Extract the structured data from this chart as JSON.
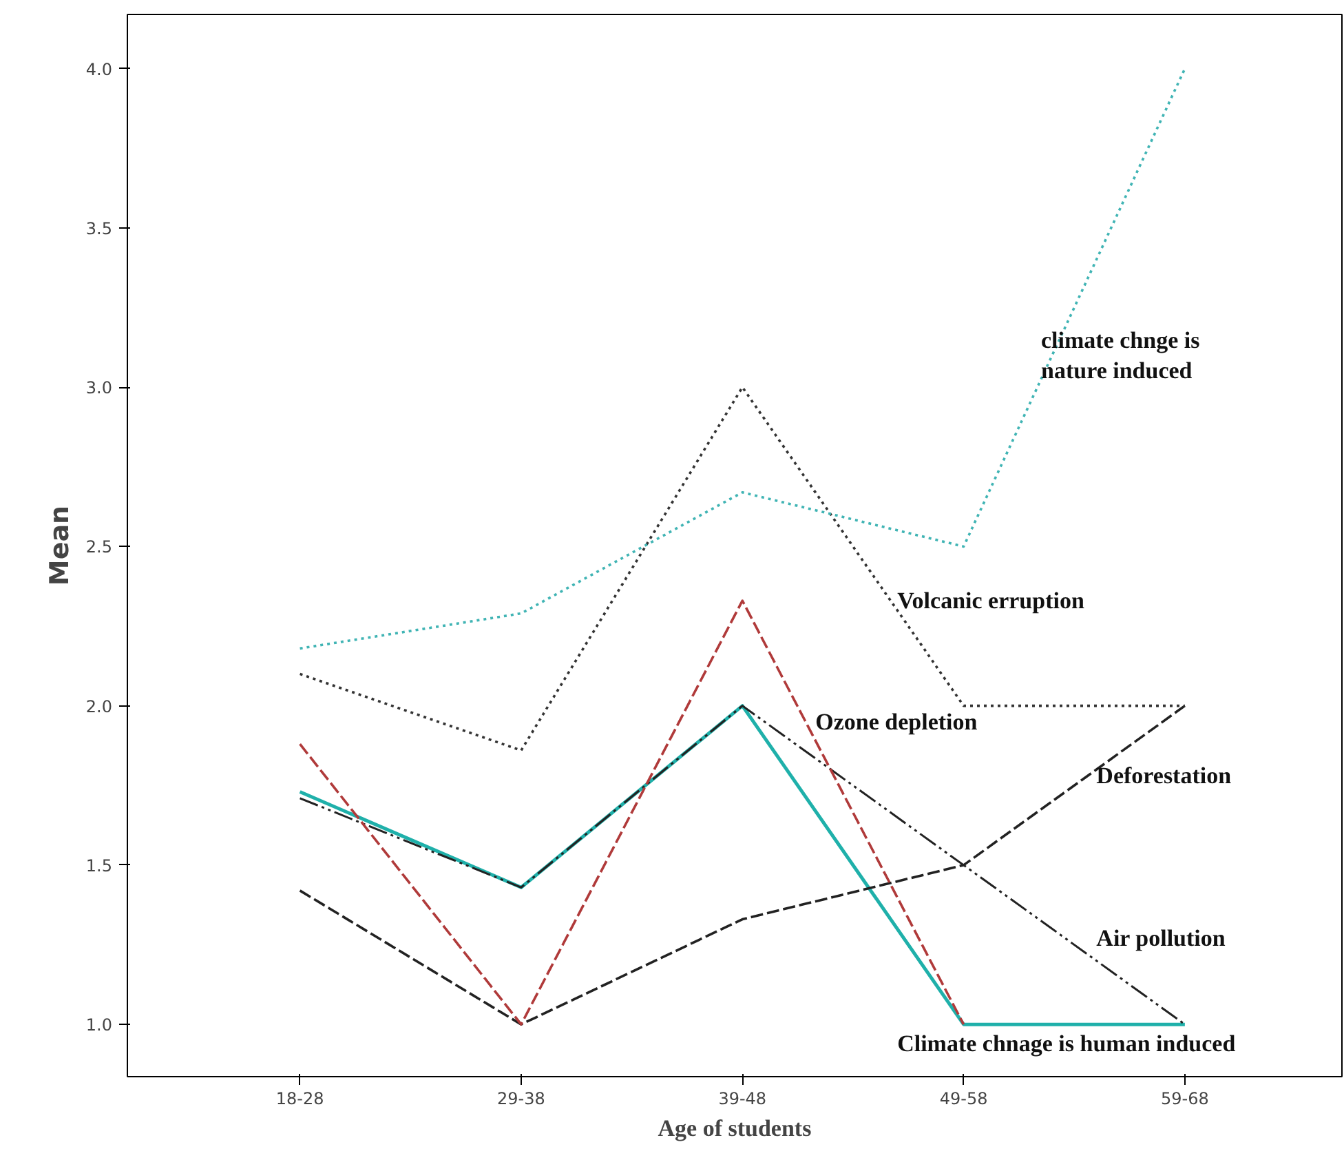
{
  "chart_data": {
    "type": "line",
    "xlabel": "Age of students",
    "ylabel": "Mean",
    "categories": [
      "18-28",
      "29-38",
      "39-48",
      "49-58",
      "59-68"
    ],
    "ylim": [
      0.836,
      4.17
    ],
    "yticks": [
      {
        "value": 1.0,
        "label": "1.0"
      },
      {
        "value": 1.5,
        "label": "1.5"
      },
      {
        "value": 2.0,
        "label": "2.0"
      },
      {
        "value": 2.5,
        "label": "2.5"
      },
      {
        "value": 3.0,
        "label": "3.0"
      },
      {
        "value": 3.5,
        "label": "3.5"
      },
      {
        "value": 4.0,
        "label": "4.0"
      }
    ],
    "grid": false,
    "marker": "none",
    "series": [
      {
        "name": "climate chnge is\nnature induced",
        "color": "#40b4b4",
        "line_style": "dotted",
        "values": [
          2.18,
          2.29,
          2.67,
          2.5,
          4.0
        ]
      },
      {
        "name": "Volcanic erruption",
        "color": "#333333",
        "line_style": "dotted",
        "values": [
          2.1,
          1.86,
          3.0,
          2.0,
          2.0
        ]
      },
      {
        "name": "Ozone depletion",
        "color": "#b03a3a",
        "line_style": "dashed",
        "values": [
          1.88,
          1.0,
          2.33,
          1.0,
          null
        ]
      },
      {
        "name": "Deforestation",
        "color": "#222222",
        "line_style": "dashed",
        "values": [
          1.42,
          1.0,
          1.33,
          1.5,
          2.0
        ]
      },
      {
        "name": "Air pollution",
        "color": "#222222",
        "line_style": "dashdot",
        "values": [
          1.71,
          1.43,
          2.0,
          1.5,
          1.0
        ]
      },
      {
        "name": "Climate chnage is human induced",
        "color": "#1fb0aa",
        "line_style": "solid",
        "values": [
          1.73,
          1.43,
          2.0,
          1.0,
          1.0
        ]
      }
    ]
  }
}
